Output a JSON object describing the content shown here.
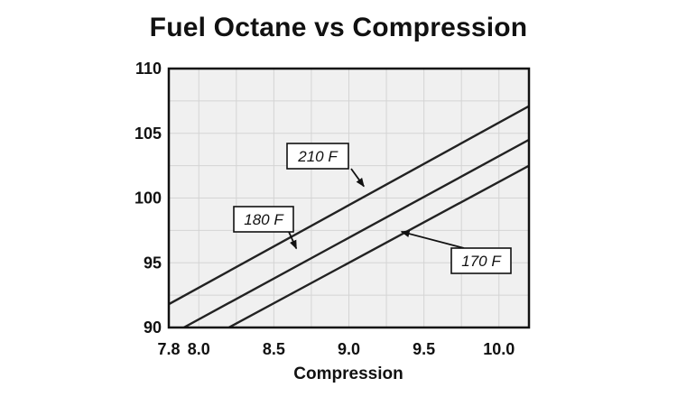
{
  "chart_data": {
    "type": "line",
    "title": "Fuel Octane vs Compression",
    "xlabel": "Compression",
    "ylabel": "",
    "xlim": [
      7.8,
      10.2
    ],
    "ylim": [
      90,
      110
    ],
    "x_ticks": [
      "7.8",
      "8.0",
      "8.5",
      "9.0",
      "9.5",
      "10.0"
    ],
    "x_tick_values": [
      7.8,
      8.0,
      8.5,
      9.0,
      9.5,
      10.0
    ],
    "y_ticks": [
      "90",
      "95",
      "100",
      "105",
      "110"
    ],
    "y_tick_values": [
      90,
      95,
      100,
      105,
      110
    ],
    "grid": true,
    "series": [
      {
        "name": "210 F",
        "x": [
          7.8,
          10.2
        ],
        "y": [
          91.8,
          107.1
        ]
      },
      {
        "name": "180 F",
        "x": [
          7.9,
          10.2
        ],
        "y": [
          90.0,
          104.5
        ]
      },
      {
        "name": "170 F",
        "x": [
          8.2,
          10.2
        ],
        "y": [
          90.0,
          102.5
        ]
      }
    ],
    "annotations": [
      {
        "text": "210 F",
        "series": "210 F",
        "arrow_to": {
          "x": 9.1,
          "y": 100.9
        }
      },
      {
        "text": "180 F",
        "series": "180 F",
        "arrow_to": {
          "x": 8.65,
          "y": 96.1
        }
      },
      {
        "text": "170 F",
        "series": "170 F",
        "arrow_to": {
          "x": 9.35,
          "y": 97.4
        }
      }
    ],
    "colors": {
      "line": "#222222",
      "plot_background": "#f0f0f0",
      "grid": "#d4d4d4"
    }
  }
}
